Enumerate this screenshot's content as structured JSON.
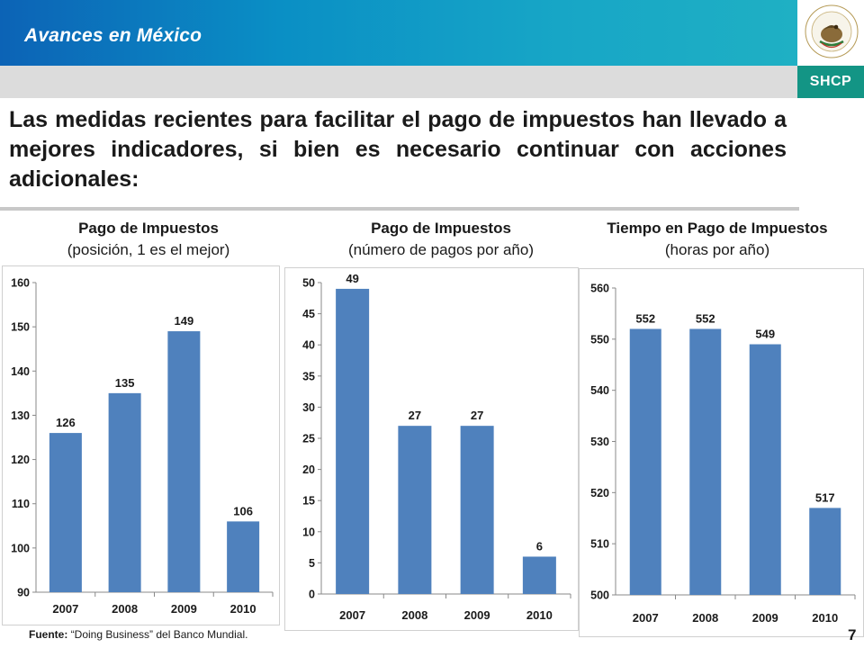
{
  "header": {
    "section_title": "Avances en México",
    "brand": "SHCP",
    "seal_text": "ESTADOS UNIDOS MEXICANOS"
  },
  "headline": "Las medidas recientes para facilitar el pago de impuestos han llevado a mejores indicadores, si bien es necesario continuar con acciones adicionales:",
  "charts_text": [
    {
      "title": "Pago de Impuestos",
      "subtitle": "(posición, 1 es el mejor)"
    },
    {
      "title": "Pago de Impuestos",
      "subtitle": "(número de pagos por año)"
    },
    {
      "title": "Tiempo en Pago de Impuestos",
      "subtitle": "(horas por año)"
    }
  ],
  "footer": {
    "source_label": "Fuente:",
    "source_text": " “Doing Business” del Banco Mundial.",
    "page_number": "7"
  },
  "colors": {
    "bar": "#4f81bd",
    "header_blue": "#0a8fc5",
    "shcp_green": "#139585"
  },
  "chart_data": [
    {
      "type": "bar",
      "title": "Pago de Impuestos",
      "subtitle": "(posición, 1 es el mejor)",
      "categories": [
        "2007",
        "2008",
        "2009",
        "2010"
      ],
      "values": [
        126,
        135,
        149,
        106
      ],
      "ylim": [
        90,
        160
      ],
      "yticks": [
        90,
        100,
        110,
        120,
        130,
        140,
        150,
        160
      ],
      "grid": false
    },
    {
      "type": "bar",
      "title": "Pago de Impuestos",
      "subtitle": "(número de pagos por año)",
      "categories": [
        "2007",
        "2008",
        "2009",
        "2010"
      ],
      "values": [
        49,
        27,
        27,
        6
      ],
      "ylim": [
        0,
        50
      ],
      "yticks": [
        0,
        5,
        10,
        15,
        20,
        25,
        30,
        35,
        40,
        45,
        50
      ],
      "grid": false
    },
    {
      "type": "bar",
      "title": "Tiempo en Pago de Impuestos",
      "subtitle": "(horas por año)",
      "categories": [
        "2007",
        "2008",
        "2009",
        "2010"
      ],
      "values": [
        552,
        552,
        549,
        517
      ],
      "ylim": [
        500,
        560
      ],
      "yticks": [
        500,
        510,
        520,
        530,
        540,
        550,
        560
      ],
      "grid": false
    }
  ]
}
